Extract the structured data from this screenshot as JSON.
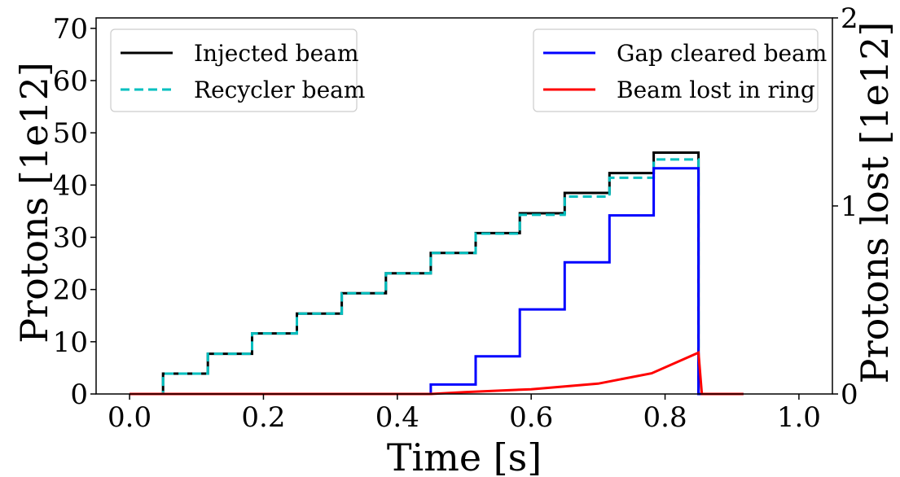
{
  "chart_data": {
    "type": "line",
    "title": "",
    "xlabel": "Time [s]",
    "ylabel": "Protons [1e12]",
    "y2label": "Protons lost [1e12]",
    "xlim": [
      -0.05,
      1.05
    ],
    "ylim": [
      0,
      72
    ],
    "y2lim": [
      0,
      2
    ],
    "xticks": [
      "0.0",
      "0.2",
      "0.4",
      "0.6",
      "0.8",
      "1.0"
    ],
    "yticks": [
      "0",
      "10",
      "20",
      "30",
      "40",
      "50",
      "60",
      "70"
    ],
    "y2ticks": [
      "0",
      "1",
      "2"
    ],
    "grid": false,
    "legend_left": [
      "Injected beam",
      "Recycler beam"
    ],
    "legend_right": [
      "Gap cleared beam",
      "Beam lost in ring"
    ],
    "legend_left_placement": "top-left",
    "legend_right_placement": "top-right",
    "series": [
      {
        "name": "Injected beam",
        "axis": "left",
        "color": "#000000",
        "style": "solid",
        "points": [
          [
            0.0,
            0
          ],
          [
            0.05,
            0
          ],
          [
            0.05,
            3.9
          ],
          [
            0.117,
            3.9
          ],
          [
            0.117,
            7.7
          ],
          [
            0.183,
            7.7
          ],
          [
            0.183,
            11.6
          ],
          [
            0.25,
            11.6
          ],
          [
            0.25,
            15.4
          ],
          [
            0.317,
            15.4
          ],
          [
            0.317,
            19.3
          ],
          [
            0.383,
            19.3
          ],
          [
            0.383,
            23.1
          ],
          [
            0.45,
            23.1
          ],
          [
            0.45,
            27.0
          ],
          [
            0.517,
            27.0
          ],
          [
            0.517,
            30.8
          ],
          [
            0.583,
            30.8
          ],
          [
            0.583,
            34.6
          ],
          [
            0.65,
            34.6
          ],
          [
            0.65,
            38.5
          ],
          [
            0.717,
            38.5
          ],
          [
            0.717,
            42.3
          ],
          [
            0.783,
            42.3
          ],
          [
            0.783,
            46.2
          ],
          [
            0.85,
            46.2
          ],
          [
            0.85,
            0
          ],
          [
            0.917,
            0
          ]
        ]
      },
      {
        "name": "Recycler beam",
        "axis": "left",
        "color": "#00bfbf",
        "style": "dashed",
        "points": [
          [
            0.0,
            0
          ],
          [
            0.05,
            0
          ],
          [
            0.05,
            3.9
          ],
          [
            0.117,
            3.9
          ],
          [
            0.117,
            7.7
          ],
          [
            0.183,
            7.7
          ],
          [
            0.183,
            11.6
          ],
          [
            0.25,
            11.6
          ],
          [
            0.25,
            15.4
          ],
          [
            0.317,
            15.4
          ],
          [
            0.317,
            19.3
          ],
          [
            0.383,
            19.3
          ],
          [
            0.383,
            23.1
          ],
          [
            0.45,
            23.1
          ],
          [
            0.45,
            27.0
          ],
          [
            0.517,
            27.0
          ],
          [
            0.517,
            30.7
          ],
          [
            0.583,
            30.7
          ],
          [
            0.583,
            34.3
          ],
          [
            0.65,
            34.3
          ],
          [
            0.65,
            37.8
          ],
          [
            0.717,
            37.8
          ],
          [
            0.717,
            41.4
          ],
          [
            0.783,
            41.4
          ],
          [
            0.783,
            44.9
          ],
          [
            0.85,
            44.9
          ],
          [
            0.85,
            0
          ],
          [
            0.917,
            0
          ]
        ]
      },
      {
        "name": "Gap cleared beam",
        "axis": "right",
        "color": "#0000ff",
        "style": "solid",
        "points": [
          [
            0.0,
            0
          ],
          [
            0.45,
            0
          ],
          [
            0.45,
            0.05
          ],
          [
            0.517,
            0.05
          ],
          [
            0.517,
            0.2
          ],
          [
            0.583,
            0.2
          ],
          [
            0.583,
            0.45
          ],
          [
            0.65,
            0.45
          ],
          [
            0.65,
            0.7
          ],
          [
            0.717,
            0.7
          ],
          [
            0.717,
            0.95
          ],
          [
            0.783,
            0.95
          ],
          [
            0.783,
            1.2
          ],
          [
            0.85,
            1.2
          ],
          [
            0.85,
            0
          ],
          [
            0.917,
            0
          ]
        ]
      },
      {
        "name": "Beam lost in ring",
        "axis": "right",
        "color": "#ff0000",
        "style": "solid",
        "points": [
          [
            0.0,
            0
          ],
          [
            0.45,
            0
          ],
          [
            0.5,
            0.01
          ],
          [
            0.6,
            0.025
          ],
          [
            0.7,
            0.055
          ],
          [
            0.78,
            0.11
          ],
          [
            0.85,
            0.22
          ],
          [
            0.855,
            0
          ],
          [
            0.917,
            0
          ]
        ]
      }
    ]
  }
}
